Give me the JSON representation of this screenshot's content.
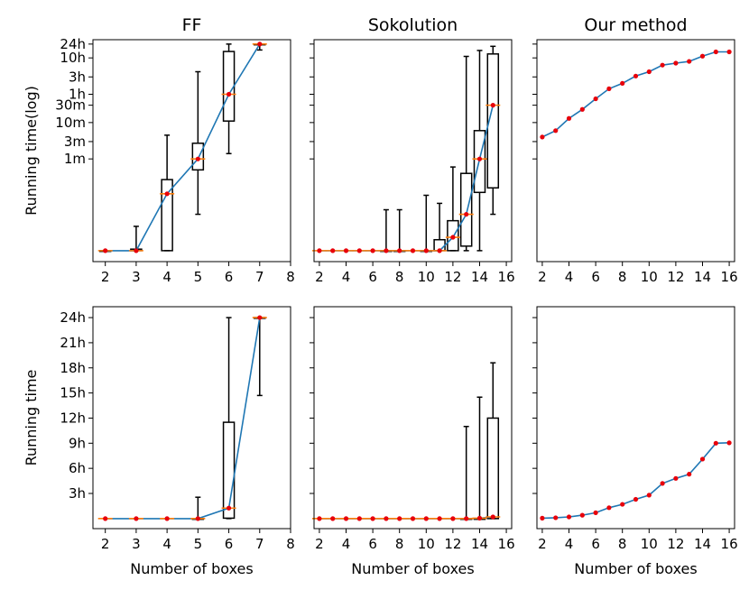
{
  "colors": {
    "line": "#1f77b4",
    "median": "#ff7f0e",
    "point": "#e8000b",
    "box": "#000000"
  },
  "chart_data": [
    {
      "panel": "FF-log",
      "type": "line+box",
      "title": "FF",
      "ylabel": "Running time(log)",
      "xlabel": "",
      "xlim": [
        1.6,
        8
      ],
      "xticks": [
        2,
        3,
        4,
        5,
        6,
        7,
        8
      ],
      "xtick_labels": [
        "2",
        "3",
        "4",
        "5",
        "6",
        "7",
        "8"
      ],
      "yscale": "log",
      "ylim": [
        0.0015,
        1900
      ],
      "yticks": [
        1,
        3,
        10,
        30,
        60,
        180,
        600,
        1440
      ],
      "ytick_labels": [
        "1m",
        "3m",
        "10m",
        "30m",
        "1h",
        "3h",
        "10h",
        "24h"
      ],
      "minor_yticks": [],
      "x": [
        2,
        3,
        4,
        5,
        6,
        7
      ],
      "values": [
        0.003,
        0.003,
        0.11,
        1.0,
        60,
        1440
      ],
      "boxes": [
        {
          "x": 2,
          "q1": 0.003,
          "q3": 0.003,
          "wl": 0.003,
          "wh": 0.003
        },
        {
          "x": 3,
          "q1": 0.003,
          "q3": 0.0033,
          "wl": 0.003,
          "wh": 0.014
        },
        {
          "x": 4,
          "q1": 0.003,
          "q3": 0.27,
          "wl": 0.003,
          "wh": 4.5
        },
        {
          "x": 5,
          "q1": 0.5,
          "q3": 2.7,
          "wl": 0.03,
          "wh": 250
        },
        {
          "x": 6,
          "q1": 11,
          "q3": 900,
          "wl": 1.4,
          "wh": 1440
        },
        {
          "x": 7,
          "q1": 1440,
          "q3": 1440,
          "wl": 990,
          "wh": 1440
        }
      ]
    },
    {
      "panel": "Sokolution-log",
      "type": "line+box",
      "title": "Sokolution",
      "ylabel": "",
      "xlabel": "",
      "xlim": [
        1.6,
        16.4
      ],
      "xticks": [
        2,
        4,
        6,
        8,
        10,
        12,
        14,
        16
      ],
      "xtick_labels": [
        "2",
        "4",
        "6",
        "8",
        "10",
        "12",
        "14",
        "16"
      ],
      "yscale": "log",
      "ylim": [
        0.0015,
        1900
      ],
      "yticks": [],
      "ytick_labels": [],
      "minor_yticks": [
        1,
        3,
        10,
        30,
        60,
        180,
        600,
        1440
      ],
      "x": [
        2,
        3,
        4,
        5,
        6,
        7,
        8,
        9,
        10,
        11,
        12,
        13,
        14,
        15
      ],
      "values": [
        0.003,
        0.003,
        0.003,
        0.003,
        0.003,
        0.003,
        0.003,
        0.003,
        0.003,
        0.003,
        0.007,
        0.03,
        1,
        30
      ],
      "boxes": [
        {
          "x": 7,
          "q1": 0.003,
          "q3": 0.003,
          "wl": 0.003,
          "wh": 0.04
        },
        {
          "x": 8,
          "q1": 0.003,
          "q3": 0.003,
          "wl": 0.003,
          "wh": 0.04
        },
        {
          "x": 10,
          "q1": 0.003,
          "q3": 0.003,
          "wl": 0.003,
          "wh": 0.1
        },
        {
          "x": 11,
          "q1": 0.003,
          "q3": 0.006,
          "wl": 0.003,
          "wh": 0.06
        },
        {
          "x": 12,
          "q1": 0.003,
          "q3": 0.02,
          "wl": 0.003,
          "wh": 0.6
        },
        {
          "x": 13,
          "q1": 0.004,
          "q3": 0.4,
          "wl": 0.003,
          "wh": 660
        },
        {
          "x": 14,
          "q1": 0.12,
          "q3": 6,
          "wl": 0.003,
          "wh": 960
        },
        {
          "x": 15,
          "q1": 0.16,
          "q3": 770,
          "wl": 0.03,
          "wh": 1250
        }
      ]
    },
    {
      "panel": "Ours-log",
      "type": "line",
      "title": "Our method",
      "ylabel": "",
      "xlabel": "",
      "xlim": [
        1.6,
        16.4
      ],
      "xticks": [
        2,
        4,
        6,
        8,
        10,
        12,
        14,
        16
      ],
      "xtick_labels": [
        "2",
        "4",
        "6",
        "8",
        "10",
        "12",
        "14",
        "16"
      ],
      "yscale": "log",
      "ylim": [
        0.0015,
        1900
      ],
      "yticks": [],
      "ytick_labels": [],
      "minor_yticks": [
        1,
        3,
        10,
        30,
        60,
        180,
        600,
        1440
      ],
      "x": [
        2,
        3,
        4,
        5,
        6,
        7,
        8,
        9,
        10,
        11,
        12,
        13,
        14,
        15,
        16
      ],
      "values": [
        4.0,
        6.0,
        13,
        23,
        45,
        85,
        120,
        190,
        250,
        380,
        430,
        480,
        670,
        880,
        880
      ]
    },
    {
      "panel": "FF-linear",
      "type": "line+box",
      "title": "",
      "ylabel": "Running time",
      "xlabel": "Number of boxes",
      "xlim": [
        1.6,
        8
      ],
      "xticks": [
        2,
        3,
        4,
        5,
        6,
        7,
        8
      ],
      "xtick_labels": [
        "2",
        "3",
        "4",
        "5",
        "6",
        "7",
        "8"
      ],
      "yscale": "linear",
      "ylim": [
        -1.2,
        25.3
      ],
      "yticks": [
        3,
        6,
        9,
        12,
        15,
        18,
        21,
        24
      ],
      "ytick_labels": [
        "3h",
        "6h",
        "9h",
        "12h",
        "15h",
        "18h",
        "21h",
        "24h"
      ],
      "minor_yticks": [],
      "x": [
        2,
        3,
        4,
        5,
        6,
        7
      ],
      "values": [
        0,
        0,
        0,
        0,
        1.25,
        24
      ],
      "boxes": [
        {
          "x": 5,
          "q1": 0,
          "q3": 0,
          "wl": 0,
          "wh": 2.55
        },
        {
          "x": 6,
          "q1": 0.05,
          "q3": 11.5,
          "wl": 0,
          "wh": 24
        },
        {
          "x": 7,
          "q1": 24,
          "q3": 24,
          "wl": 14.7,
          "wh": 24
        }
      ]
    },
    {
      "panel": "Sokolution-linear",
      "type": "line+box",
      "title": "",
      "ylabel": "",
      "xlabel": "Number of boxes",
      "xlim": [
        1.6,
        16.4
      ],
      "xticks": [
        2,
        4,
        6,
        8,
        10,
        12,
        14,
        16
      ],
      "xtick_labels": [
        "2",
        "4",
        "6",
        "8",
        "10",
        "12",
        "14",
        "16"
      ],
      "yscale": "linear",
      "ylim": [
        -1.2,
        25.3
      ],
      "yticks": [],
      "ytick_labels": [],
      "minor_yticks": [
        3,
        6,
        9,
        12,
        15,
        18,
        21,
        24
      ],
      "x": [
        2,
        3,
        4,
        5,
        6,
        7,
        8,
        9,
        10,
        11,
        12,
        13,
        14,
        15
      ],
      "values": [
        0,
        0,
        0,
        0,
        0,
        0,
        0,
        0,
        0,
        0,
        0,
        0,
        0.05,
        0.2
      ],
      "boxes": [
        {
          "x": 13,
          "q1": 0,
          "q3": 0,
          "wl": 0,
          "wh": 11
        },
        {
          "x": 14,
          "q1": 0,
          "q3": 0,
          "wl": 0,
          "wh": 14.5
        },
        {
          "x": 15,
          "q1": 0,
          "q3": 12,
          "wl": 0,
          "wh": 18.6
        }
      ]
    },
    {
      "panel": "Ours-linear",
      "type": "line",
      "title": "",
      "ylabel": "",
      "xlabel": "Number of boxes",
      "xlim": [
        1.6,
        16.4
      ],
      "xticks": [
        2,
        4,
        6,
        8,
        10,
        12,
        14,
        16
      ],
      "xtick_labels": [
        "2",
        "4",
        "6",
        "8",
        "10",
        "12",
        "14",
        "16"
      ],
      "yscale": "linear",
      "ylim": [
        -1.2,
        25.3
      ],
      "yticks": [],
      "ytick_labels": [],
      "minor_yticks": [
        3,
        6,
        9,
        12,
        15,
        18,
        21,
        24
      ],
      "x": [
        2,
        3,
        4,
        5,
        6,
        7,
        8,
        9,
        10,
        11,
        12,
        13,
        14,
        15,
        16
      ],
      "values": [
        0.05,
        0.1,
        0.2,
        0.4,
        0.7,
        1.3,
        1.7,
        2.3,
        2.8,
        4.2,
        4.8,
        5.3,
        7.1,
        9.0,
        9.05
      ]
    }
  ]
}
